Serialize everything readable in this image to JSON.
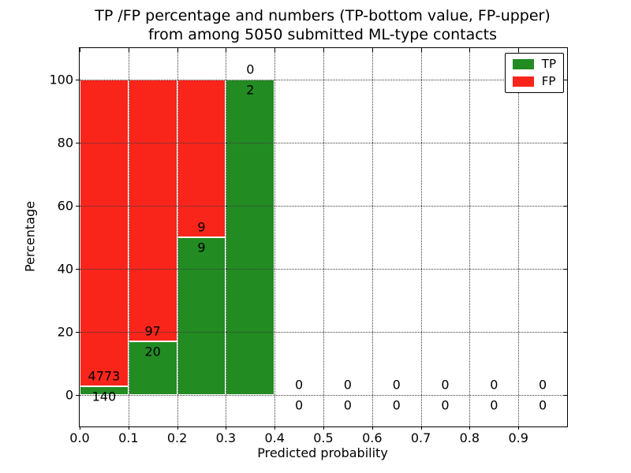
{
  "figure": {
    "title_line1": "TP /FP percentage and numbers (TP-bottom value, FP-upper)",
    "title_line2": "from among 5050 submitted ML-type contacts"
  },
  "axes": {
    "xlabel": "Predicted probability",
    "ylabel": "Percentage"
  },
  "legend": {
    "position": "upper right",
    "items": [
      {
        "label": "TP",
        "color": "#228b22"
      },
      {
        "label": "FP",
        "color": "#f9251b"
      }
    ]
  },
  "colors": {
    "tp_green": "#228b22",
    "fp_red": "#f9251b",
    "grid": "#3a3a3a",
    "spine": "#000000",
    "background": "#ffffff"
  },
  "chart_data": {
    "type": "bar",
    "stacked": true,
    "title": "TP /FP percentage and numbers (TP-bottom value, FP-upper)\nfrom among 5050 submitted ML-type contacts",
    "xlabel": "Predicted probability",
    "ylabel": "Percentage",
    "total_contacts": 5050,
    "grid": true,
    "legend_position": "upper right",
    "xlim": [
      0.0,
      1.0
    ],
    "ylim": [
      -10,
      110
    ],
    "bin_width": 0.1,
    "xticks": [
      0.0,
      0.1,
      0.2,
      0.3,
      0.4,
      0.5,
      0.6,
      0.7,
      0.8,
      0.9
    ],
    "xtick_labels": [
      "0.0",
      "0.1",
      "0.2",
      "0.3",
      "0.4",
      "0.5",
      "0.6",
      "0.7",
      "0.8",
      "0.9"
    ],
    "yticks": [
      0,
      20,
      40,
      60,
      80,
      100
    ],
    "series": [
      {
        "name": "TP",
        "color": "#228b22",
        "counts": [
          140,
          20,
          9,
          2,
          0,
          0,
          0,
          0,
          0,
          0
        ],
        "percentages": [
          2.85,
          17.09,
          50.0,
          100.0,
          0,
          0,
          0,
          0,
          0,
          0
        ]
      },
      {
        "name": "FP",
        "color": "#f9251b",
        "counts": [
          4773,
          97,
          9,
          0,
          0,
          0,
          0,
          0,
          0,
          0
        ],
        "percentages": [
          97.15,
          82.91,
          50.0,
          0.0,
          0,
          0,
          0,
          0,
          0,
          0
        ]
      }
    ]
  }
}
